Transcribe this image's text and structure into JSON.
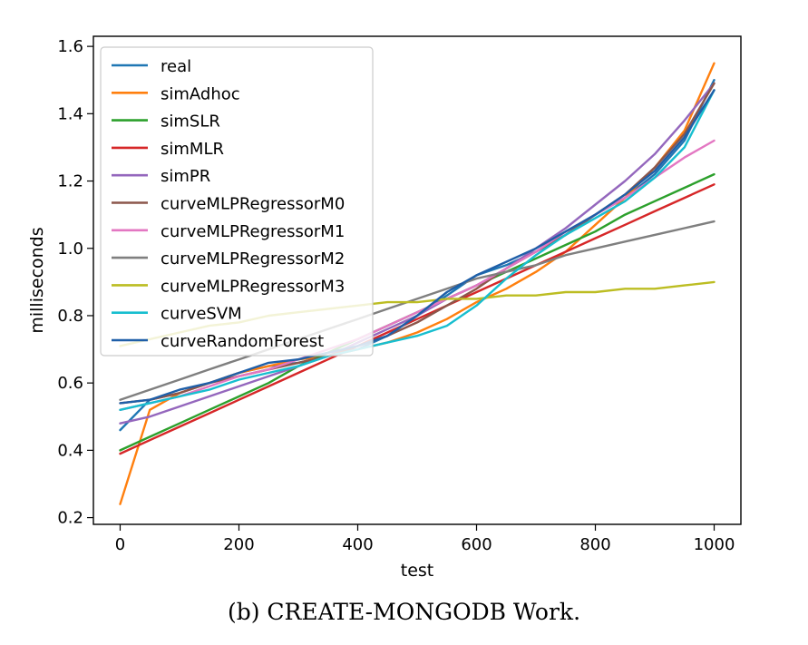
{
  "chart_data": {
    "type": "line",
    "xlabel": "test",
    "ylabel": "milliseconds",
    "xlim": [
      -45,
      1045
    ],
    "ylim": [
      0.18,
      1.63
    ],
    "xticks": [
      0,
      200,
      400,
      600,
      800,
      1000
    ],
    "yticks": [
      0.2,
      0.4,
      0.6,
      0.8,
      1.0,
      1.2,
      1.4,
      1.6
    ],
    "xtick_labels": [
      "0",
      "200",
      "400",
      "600",
      "800",
      "1000"
    ],
    "ytick_labels": [
      "0.2",
      "0.4",
      "0.6",
      "0.8",
      "1.0",
      "1.2",
      "1.4",
      "1.6"
    ],
    "grid": false,
    "legend_position": "top-left",
    "x": [
      0,
      50,
      100,
      150,
      200,
      250,
      300,
      350,
      400,
      450,
      500,
      550,
      600,
      650,
      700,
      750,
      800,
      850,
      900,
      950,
      1000
    ],
    "series": [
      {
        "name": "real",
        "color": "#1f77b4",
        "values": [
          0.46,
          0.55,
          0.57,
          0.6,
          0.63,
          0.65,
          0.66,
          0.68,
          0.7,
          0.74,
          0.8,
          0.86,
          0.92,
          0.95,
          0.99,
          1.04,
          1.1,
          1.15,
          1.22,
          1.32,
          1.5
        ]
      },
      {
        "name": "simAdhoc",
        "color": "#ff7f0e",
        "values": [
          0.24,
          0.52,
          0.57,
          0.6,
          0.63,
          0.65,
          0.67,
          0.68,
          0.7,
          0.72,
          0.75,
          0.79,
          0.84,
          0.88,
          0.93,
          0.99,
          1.07,
          1.15,
          1.24,
          1.35,
          1.55
        ]
      },
      {
        "name": "simSLR",
        "color": "#2ca02c",
        "values": [
          0.4,
          0.44,
          0.48,
          0.52,
          0.56,
          0.6,
          0.65,
          0.69,
          0.73,
          0.77,
          0.81,
          0.85,
          0.89,
          0.93,
          0.97,
          1.01,
          1.05,
          1.1,
          1.14,
          1.18,
          1.22
        ]
      },
      {
        "name": "simMLR",
        "color": "#d62728",
        "values": [
          0.39,
          0.43,
          0.47,
          0.51,
          0.55,
          0.59,
          0.63,
          0.67,
          0.71,
          0.75,
          0.79,
          0.83,
          0.87,
          0.91,
          0.95,
          0.99,
          1.03,
          1.07,
          1.11,
          1.15,
          1.19
        ]
      },
      {
        "name": "simPR",
        "color": "#9467bd",
        "values": [
          0.48,
          0.5,
          0.53,
          0.56,
          0.59,
          0.62,
          0.65,
          0.68,
          0.72,
          0.76,
          0.8,
          0.85,
          0.89,
          0.94,
          1.0,
          1.06,
          1.13,
          1.2,
          1.28,
          1.38,
          1.49
        ]
      },
      {
        "name": "curveMLPRegressorM0",
        "color": "#8c564b",
        "values": [
          0.54,
          0.55,
          0.57,
          0.6,
          0.62,
          0.64,
          0.66,
          0.68,
          0.71,
          0.74,
          0.78,
          0.83,
          0.88,
          0.94,
          0.99,
          1.04,
          1.1,
          1.16,
          1.24,
          1.34,
          1.49
        ]
      },
      {
        "name": "curveMLPRegressorM1",
        "color": "#e377c2",
        "values": [
          0.52,
          0.54,
          0.56,
          0.59,
          0.62,
          0.64,
          0.67,
          0.7,
          0.73,
          0.77,
          0.81,
          0.85,
          0.89,
          0.94,
          0.99,
          1.05,
          1.1,
          1.15,
          1.21,
          1.27,
          1.32
        ]
      },
      {
        "name": "curveMLPRegressorM2",
        "color": "#7f7f7f",
        "values": [
          0.55,
          0.58,
          0.61,
          0.64,
          0.67,
          0.7,
          0.73,
          0.76,
          0.79,
          0.82,
          0.85,
          0.88,
          0.91,
          0.93,
          0.95,
          0.98,
          1.0,
          1.02,
          1.04,
          1.06,
          1.08
        ]
      },
      {
        "name": "curveMLPRegressorM3",
        "color": "#bcbd22",
        "values": [
          0.71,
          0.73,
          0.75,
          0.77,
          0.78,
          0.8,
          0.81,
          0.82,
          0.83,
          0.84,
          0.84,
          0.85,
          0.85,
          0.86,
          0.86,
          0.87,
          0.87,
          0.88,
          0.88,
          0.89,
          0.9
        ]
      },
      {
        "name": "curveSVM",
        "color": "#17becf",
        "values": [
          0.52,
          0.54,
          0.56,
          0.58,
          0.61,
          0.63,
          0.65,
          0.68,
          0.7,
          0.72,
          0.74,
          0.77,
          0.83,
          0.91,
          0.98,
          1.04,
          1.09,
          1.14,
          1.21,
          1.3,
          1.47
        ]
      },
      {
        "name": "curveRandomForest",
        "color": "#1f5fa8",
        "values": [
          0.54,
          0.55,
          0.58,
          0.6,
          0.63,
          0.66,
          0.67,
          0.69,
          0.71,
          0.74,
          0.8,
          0.87,
          0.92,
          0.96,
          1.0,
          1.05,
          1.1,
          1.16,
          1.23,
          1.33,
          1.47
        ]
      }
    ]
  },
  "caption": "(b) CREATE-MONGODB Work."
}
